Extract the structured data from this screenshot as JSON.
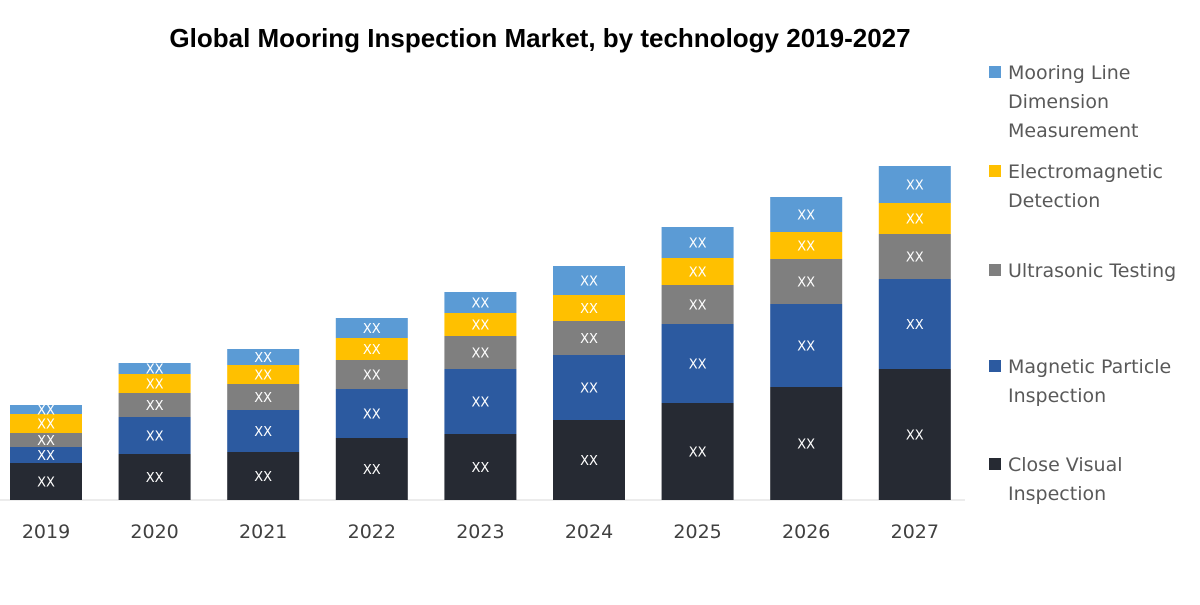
{
  "chart_data": {
    "type": "bar",
    "stacked": true,
    "title": "Global Mooring Inspection Market, by technology 2019-2027",
    "xlabel": "",
    "ylabel": "",
    "categories": [
      "2019",
      "2020",
      "2021",
      "2022",
      "2023",
      "2024",
      "2025",
      "2026",
      "2027"
    ],
    "ylim": [
      0,
      340
    ],
    "grid": false,
    "legend_position": "right",
    "segment_label": "XX",
    "series": [
      {
        "name": "Close Visual Inspection",
        "legend_lines": [
          "Close Visual",
          "Inspection"
        ],
        "color": "#262a33",
        "values": [
          37,
          46,
          48,
          62,
          66,
          80,
          97,
          113,
          131
        ]
      },
      {
        "name": "Magnetic Particle Inspection",
        "legend_lines": [
          "Magnetic Particle",
          "Inspection"
        ],
        "color": "#2c5aa0",
        "values": [
          16,
          37,
          42,
          49,
          65,
          65,
          79,
          83,
          90
        ]
      },
      {
        "name": "Ultrasonic Testing",
        "legend_lines": [
          "Ultrasonic Testing"
        ],
        "color": "#7f7f7f",
        "values": [
          14,
          24,
          26,
          29,
          33,
          34,
          39,
          45,
          45
        ]
      },
      {
        "name": "Electromagnetic Detection",
        "legend_lines": [
          "Electromagnetic",
          "Detection"
        ],
        "color": "#ffc000",
        "values": [
          19,
          19,
          19,
          22,
          23,
          26,
          27,
          27,
          31
        ]
      },
      {
        "name": "Mooring Line Dimension Measurement",
        "legend_lines": [
          "Mooring Line",
          "Dimension",
          "Measurement"
        ],
        "color": "#5b9bd5",
        "values": [
          9,
          11,
          16,
          20,
          21,
          29,
          31,
          35,
          37
        ]
      }
    ]
  }
}
